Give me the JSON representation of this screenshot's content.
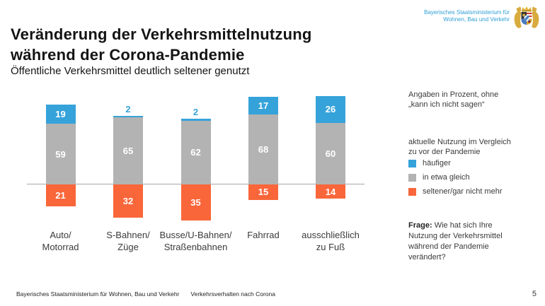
{
  "header": {
    "ministry_name": "Bayerisches Staatsministerium für\nWohnen, Bau und Verkehr"
  },
  "title": {
    "main": "Veränderung der Verkehrsmittelnutzung\nwährend der Corona-Pandemie",
    "subtitle": "Öffentliche Verkehrsmittel deutlich seltener genutzt"
  },
  "chart_data": {
    "type": "bar",
    "stacked": true,
    "orientation": "vertical",
    "unit": "%",
    "baseline": 0,
    "note": "häufiger and in etwa gleich stacked above zero line, seltener/gar nicht mehr plotted below zero line",
    "axes_hidden": true,
    "value_labels": true,
    "categories": [
      "Auto/\nMotorrad",
      "S-Bahnen/\nZüge",
      "Busse/U-Bahnen/\nStraßenbahnen",
      "Fahrrad",
      "ausschließlich\nzu Fuß"
    ],
    "series": [
      {
        "name": "häufiger",
        "color": "#35a3da",
        "values": [
          19,
          2,
          2,
          17,
          26
        ]
      },
      {
        "name": "in etwa gleich",
        "color": "#b3b3b3",
        "values": [
          59,
          65,
          62,
          68,
          60
        ]
      },
      {
        "name": "seltener/gar nicht mehr",
        "color": "#f9663a",
        "values": [
          21,
          32,
          35,
          15,
          14
        ]
      }
    ]
  },
  "right_panel": {
    "note_percent": "Angaben in Prozent, ohne\n„kann ich nicht sagen“",
    "legend_title": "aktuelle Nutzung im Vergleich\nzu vor der Pandemie",
    "legend": [
      "häufiger",
      "in etwa gleich",
      "seltener/gar nicht mehr"
    ],
    "frage_label": "Frage:",
    "frage_text": "Wie hat sich Ihre Nutzung der Verkehrsmittel während der Pandemie verändert?"
  },
  "footer": {
    "ministry": "Bayerisches Staatsministerium für Wohnen, Bau und Verkehr",
    "report": "Verkehrsverhalten nach Corona",
    "page_number": "5"
  }
}
